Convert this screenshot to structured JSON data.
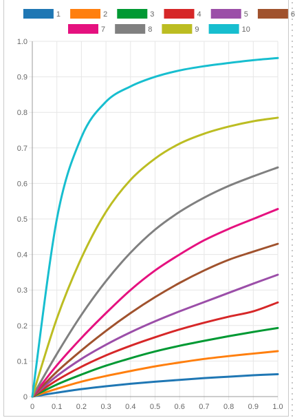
{
  "chart_data": {
    "type": "line",
    "title": "",
    "xlabel": "",
    "ylabel": "",
    "xlim": [
      0,
      1.0
    ],
    "ylim": [
      0,
      1.0
    ],
    "grid": true,
    "legend_position": "top",
    "x_ticks": [
      "0",
      "0.1",
      "0.2",
      "0.3",
      "0.4",
      "0.5",
      "0.6",
      "0.7",
      "0.8",
      "0.9",
      "1.0"
    ],
    "y_ticks": [
      "0",
      "0.1",
      "0.2",
      "0.3",
      "0.4",
      "0.5",
      "0.6",
      "0.7",
      "0.8",
      "0.9",
      "1.0"
    ],
    "x": [
      0,
      0.1,
      0.2,
      0.3,
      0.4,
      0.5,
      0.6,
      0.7,
      0.8,
      0.9,
      1.0
    ],
    "series": [
      {
        "name": "1",
        "color": "#1f77b4",
        "values": [
          0,
          0.011,
          0.021,
          0.029,
          0.036,
          0.042,
          0.047,
          0.052,
          0.056,
          0.06,
          0.063
        ]
      },
      {
        "name": "2",
        "color": "#ff7f0e",
        "values": [
          0,
          0.022,
          0.042,
          0.058,
          0.072,
          0.085,
          0.096,
          0.106,
          0.114,
          0.121,
          0.128
        ]
      },
      {
        "name": "3",
        "color": "#009933",
        "values": [
          0,
          0.034,
          0.062,
          0.087,
          0.108,
          0.127,
          0.143,
          0.157,
          0.17,
          0.182,
          0.193
        ]
      },
      {
        "name": "4",
        "color": "#d62728",
        "values": [
          0,
          0.046,
          0.084,
          0.116,
          0.143,
          0.167,
          0.189,
          0.208,
          0.225,
          0.24,
          0.265
        ]
      },
      {
        "name": "5",
        "color": "#9b4ea8",
        "values": [
          0,
          0.058,
          0.106,
          0.146,
          0.181,
          0.212,
          0.24,
          0.266,
          0.292,
          0.318,
          0.343
        ]
      },
      {
        "name": "6",
        "color": "#a0522d",
        "values": [
          0,
          0.07,
          0.13,
          0.185,
          0.235,
          0.28,
          0.32,
          0.355,
          0.385,
          0.408,
          0.43
        ]
      },
      {
        "name": "7",
        "color": "#e5117f",
        "values": [
          0,
          0.088,
          0.165,
          0.235,
          0.3,
          0.355,
          0.4,
          0.44,
          0.472,
          0.5,
          0.528
        ]
      },
      {
        "name": "8",
        "color": "#808080",
        "values": [
          0,
          0.12,
          0.23,
          0.325,
          0.405,
          0.47,
          0.52,
          0.56,
          0.593,
          0.62,
          0.645
        ]
      },
      {
        "name": "9",
        "color": "#bcbd22",
        "values": [
          0,
          0.22,
          0.39,
          0.52,
          0.61,
          0.67,
          0.712,
          0.74,
          0.76,
          0.775,
          0.785
        ]
      },
      {
        "name": "10",
        "color": "#17becf",
        "values": [
          0,
          0.5,
          0.73,
          0.83,
          0.873,
          0.9,
          0.918,
          0.93,
          0.939,
          0.947,
          0.953
        ]
      }
    ]
  },
  "colors": {
    "grid": "#e6e6e6",
    "axis": "#999999",
    "tick_text": "#666666"
  }
}
